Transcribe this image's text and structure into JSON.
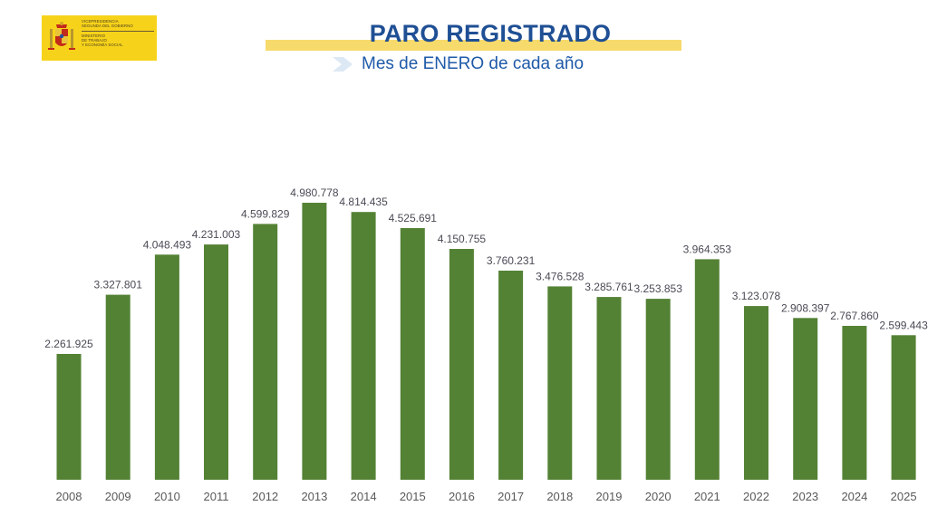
{
  "logo": {
    "line1": "VICEPRESIDENCIA",
    "line2": "SEGUNDA DEL GOBIERNO",
    "line3": "MINISTERIO",
    "line4": "DE TRABAJO",
    "line5": "Y ECONOMÍA SOCIAL"
  },
  "colors": {
    "bar": "#548235",
    "title": "#1f4f94",
    "title_highlight": "#f7da6c",
    "logo_background": "#f6d31a"
  },
  "chart_data": {
    "type": "bar",
    "title": "PARO REGISTRADO",
    "subtitle": "Mes de ENERO de cada año",
    "xlabel": "",
    "ylabel": "",
    "grid": false,
    "legend": "none",
    "ylim": [
      0,
      5100000
    ],
    "categories": [
      "2008",
      "2009",
      "2010",
      "2011",
      "2012",
      "2013",
      "2014",
      "2015",
      "2016",
      "2017",
      "2018",
      "2019",
      "2020",
      "2021",
      "2022",
      "2023",
      "2024",
      "2025"
    ],
    "values": [
      2261925,
      3327801,
      4048493,
      4231003,
      4599829,
      4980778,
      4814435,
      4525691,
      4150755,
      3760231,
      3476528,
      3285761,
      3253853,
      3964353,
      3123078,
      2908397,
      2767860,
      2599443
    ],
    "data_labels": [
      "2.261.925",
      "3.327.801",
      "4.048.493",
      "4.231.003",
      "4.599.829",
      "4.980.778",
      "4.814.435",
      "4.525.691",
      "4.150.755",
      "3.760.231",
      "3.476.528",
      "3.285.761",
      "3.253.853",
      "3.964.353",
      "3.123.078",
      "2.908.397",
      "2.767.860",
      "2.599.443"
    ]
  }
}
